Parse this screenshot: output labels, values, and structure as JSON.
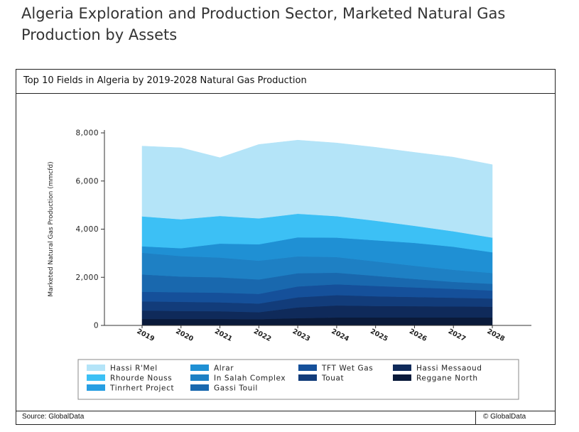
{
  "page": {
    "title": "Algeria Exploration and Production Sector, Marketed Natural Gas Production by Assets"
  },
  "chart_box": {
    "subtitle": "Top 10 Fields in Algeria by 2019-2028 Natural Gas Production",
    "source": "Source: GlobalData",
    "copyright": "© GlobalData"
  },
  "chart_data": {
    "type": "area",
    "stacked": true,
    "x": [
      "2019",
      "2020",
      "2021",
      "2022",
      "2023",
      "2024",
      "2025",
      "2026",
      "2027",
      "2028"
    ],
    "ylabel": "Marketed Natural Gas Production (mmcfd)",
    "ylim": [
      0,
      8000
    ],
    "yticks": [
      "0",
      "2,000",
      "4,000",
      "6,000",
      "8,000"
    ],
    "yticks_values": [
      0,
      2000,
      4000,
      6000,
      8000
    ],
    "grid": false,
    "legend_position": "bottom",
    "series": [
      {
        "name": "Reggane North",
        "color": "#0a1a3a",
        "values": [
          270,
          270,
          270,
          260,
          300,
          330,
          330,
          330,
          330,
          330
        ]
      },
      {
        "name": "Hassi Messaoud",
        "color": "#0f2a5a",
        "values": [
          350,
          330,
          320,
          290,
          450,
          500,
          480,
          470,
          460,
          450
        ]
      },
      {
        "name": "Touat",
        "color": "#123c7a",
        "values": [
          380,
          380,
          370,
          360,
          420,
          430,
          400,
          380,
          360,
          340
        ]
      },
      {
        "name": "TFT Wet Gas",
        "color": "#15509a",
        "values": [
          400,
          400,
          400,
          400,
          450,
          450,
          430,
          400,
          370,
          330
        ]
      },
      {
        "name": "Gassi Touil",
        "color": "#1968ae",
        "values": [
          720,
          650,
          640,
          600,
          550,
          480,
          420,
          350,
          290,
          280
        ]
      },
      {
        "name": "In Salah Complex",
        "color": "#1e80c4",
        "values": [
          900,
          850,
          820,
          780,
          700,
          650,
          600,
          550,
          500,
          450
        ]
      },
      {
        "name": "Alrar",
        "color": "#1f90d4",
        "values": [
          270,
          330,
          580,
          680,
          790,
          810,
          880,
          950,
          960,
          860
        ]
      },
      {
        "name": "Tinrhert Project",
        "color": "#279ee2",
        "values": [
          0,
          0,
          0,
          0,
          0,
          0,
          0,
          0,
          0,
          0
        ]
      },
      {
        "name": "Rhourde Nouss",
        "color": "#3cc0f5",
        "values": [
          1240,
          1200,
          1150,
          1080,
          980,
          890,
          810,
          710,
          640,
          610
        ]
      },
      {
        "name": "Hassi R'Mel",
        "color": "#b4e4f8",
        "values": [
          2920,
          2970,
          2420,
          3070,
          3060,
          3040,
          3050,
          3050,
          3080,
          3030
        ]
      }
    ],
    "legend_order": [
      "Hassi R'Mel",
      "Rhourde Nouss",
      "Tinrhert Project",
      "Alrar",
      "In Salah Complex",
      "Gassi Touil",
      "TFT Wet Gas",
      "Touat",
      "Hassi Messaoud",
      "Reggane North"
    ]
  }
}
